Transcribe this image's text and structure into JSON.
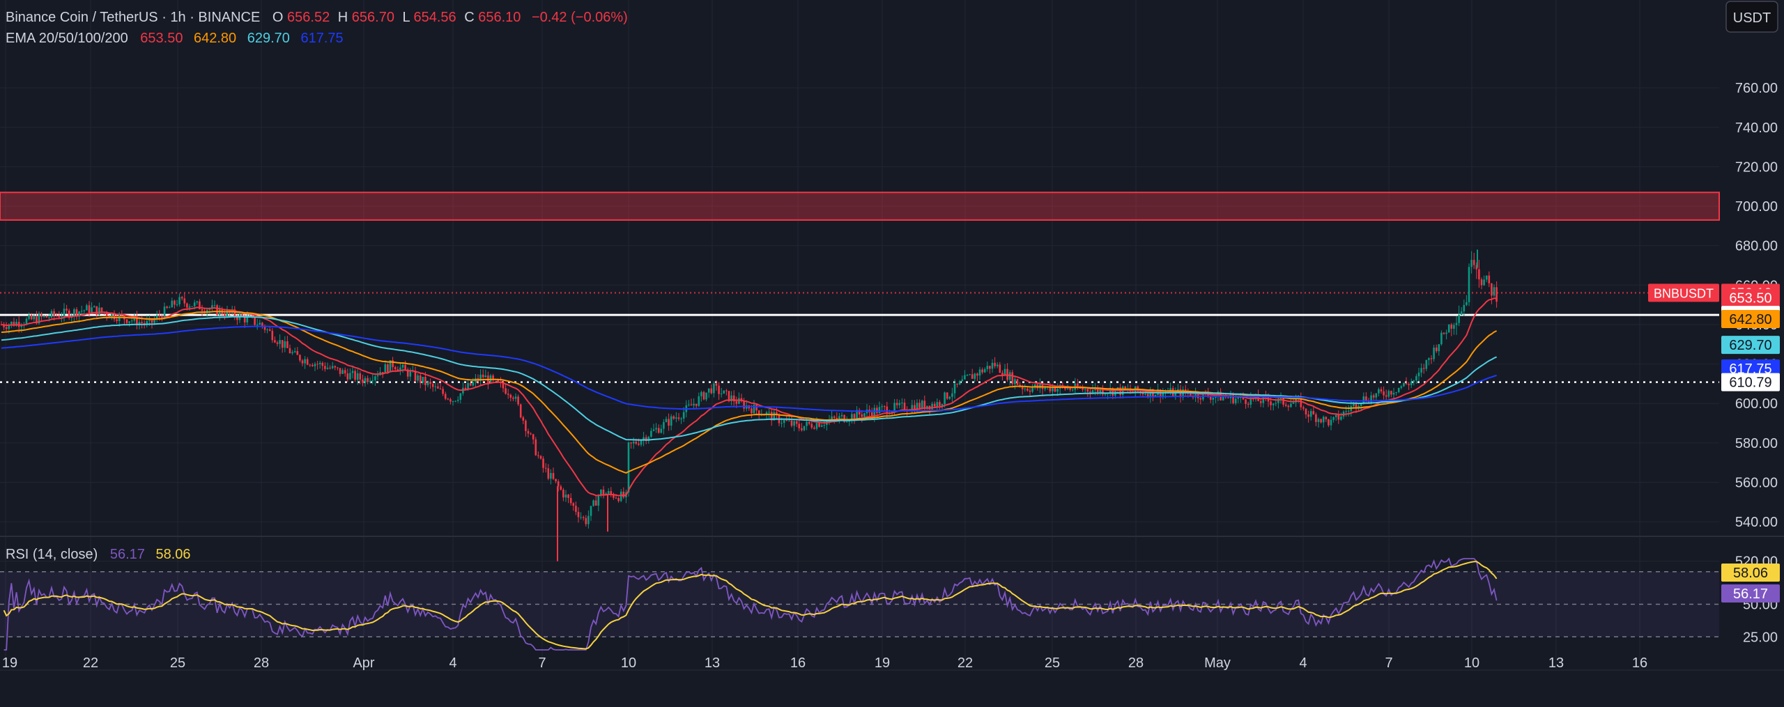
{
  "header": {
    "symbol_title": "Binance Coin / TetherUS · 1h · BINANCE",
    "ohlc": [
      {
        "label": "O",
        "value": "656.52"
      },
      {
        "label": "H",
        "value": "656.70"
      },
      {
        "label": "L",
        "value": "654.56"
      },
      {
        "label": "C",
        "value": "656.10"
      }
    ],
    "change": "−0.42 (−0.06%)",
    "ema_title": "EMA 20/50/100/200",
    "ema_values": [
      {
        "value": "653.50",
        "color": "#f23645"
      },
      {
        "value": "642.80",
        "color": "#ff9800"
      },
      {
        "value": "629.70",
        "color": "#4dd0e1"
      },
      {
        "value": "617.75",
        "color": "#1e3aff"
      }
    ],
    "currency_button": "USDT"
  },
  "rsi_header": {
    "title": "RSI (14, close)",
    "rsi_value": "56.17",
    "ma_value": "58.06"
  },
  "price_axis": {
    "ticks": [
      "760.00",
      "740.00",
      "720.00",
      "700.00",
      "680.00",
      "660.00",
      "640.00",
      "620.00",
      "600.00",
      "580.00",
      "560.00",
      "540.00",
      "520.00"
    ],
    "tags": [
      {
        "text": "656.10",
        "value": 656.1,
        "bg": "#f23645",
        "fg": "#ffffff"
      },
      {
        "text": "653.50",
        "value": 653.5,
        "bg": "#f23645",
        "fg": "#ffffff"
      },
      {
        "text": "644.88",
        "value": 644.88,
        "bg": "#ffffff",
        "fg": "#131722"
      },
      {
        "text": "642.80",
        "value": 642.8,
        "bg": "#ff9800",
        "fg": "#131722"
      },
      {
        "text": "629.70",
        "value": 629.7,
        "bg": "#4dd0e1",
        "fg": "#131722"
      },
      {
        "text": "617.75",
        "value": 617.75,
        "bg": "#1e3aff",
        "fg": "#ffffff"
      },
      {
        "text": "610.79",
        "value": 610.79,
        "bg": "#ffffff",
        "fg": "#131722"
      }
    ],
    "symbol_tag": "BNBUSDT"
  },
  "rsi_axis": {
    "ticks": [
      "75.00",
      "50.00",
      "25.00"
    ],
    "tags": [
      {
        "text": "58.06",
        "value": 58.06,
        "bg": "#f7d33e",
        "fg": "#131722"
      },
      {
        "text": "56.17",
        "value": 56.17,
        "bg": "#7e57c2",
        "fg": "#ffffff"
      }
    ]
  },
  "time_axis": {
    "ticks": [
      "19",
      "22",
      "25",
      "28",
      "Apr",
      "4",
      "7",
      "10",
      "13",
      "16",
      "19",
      "22",
      "25",
      "28",
      "May",
      "4",
      "7",
      "10",
      "13",
      "16"
    ]
  },
  "colors": {
    "background": "#161a25",
    "grid": "#222632",
    "up": "#089981",
    "down": "#f23645",
    "ema20": "#f23645",
    "ema50": "#ff9800",
    "ema100": "#4dd0e1",
    "ema200": "#1e3aff",
    "rsi": "#7e57c2",
    "rsi_ma": "#f7d33e",
    "resistance_zone": "#f23645"
  },
  "chart_data": [
    {
      "type": "candlestick",
      "title": "Binance Coin / TetherUS · 1h · BINANCE",
      "timeframe": "1h",
      "x_ticks": [
        "19",
        "22",
        "25",
        "28",
        "Apr",
        "4",
        "7",
        "10",
        "13",
        "16",
        "19",
        "22",
        "25",
        "28",
        "May",
        "4",
        "7",
        "10",
        "13",
        "16"
      ],
      "ylim": [
        510,
        770
      ],
      "y_scale": "linear",
      "grid": true,
      "last_price": 656.1,
      "price_path": [
        {
          "x": "19",
          "price": 640
        },
        {
          "x": "22",
          "price": 648
        },
        {
          "x": "24",
          "price": 640
        },
        {
          "x": "25",
          "price": 652
        },
        {
          "x": "27",
          "price": 645
        },
        {
          "x": "28",
          "price": 640
        },
        {
          "x": "29",
          "price": 624
        },
        {
          "x": "31",
          "price": 612
        },
        {
          "x": "Apr 2",
          "price": 620
        },
        {
          "x": "4",
          "price": 602
        },
        {
          "x": "5",
          "price": 614
        },
        {
          "x": "6",
          "price": 605
        },
        {
          "x": "7",
          "price": 568
        },
        {
          "x": "7.5",
          "price": 540
        },
        {
          "x": "8",
          "price": 555
        },
        {
          "x": "9",
          "price": 552
        },
        {
          "x": "10",
          "price": 578
        },
        {
          "x": "12",
          "price": 596
        },
        {
          "x": "13",
          "price": 608
        },
        {
          "x": "14",
          "price": 600
        },
        {
          "x": "16",
          "price": 588
        },
        {
          "x": "19",
          "price": 597
        },
        {
          "x": "21",
          "price": 600
        },
        {
          "x": "22",
          "price": 612
        },
        {
          "x": "23",
          "price": 620
        },
        {
          "x": "24",
          "price": 608
        },
        {
          "x": "25",
          "price": 608
        },
        {
          "x": "28",
          "price": 606
        },
        {
          "x": "30",
          "price": 605
        },
        {
          "x": "May 1",
          "price": 602
        },
        {
          "x": "3",
          "price": 600
        },
        {
          "x": "4",
          "price": 596
        },
        {
          "x": "5",
          "price": 590
        },
        {
          "x": "6",
          "price": 602
        },
        {
          "x": "7",
          "price": 606
        },
        {
          "x": "8",
          "price": 612
        },
        {
          "x": "9",
          "price": 636
        },
        {
          "x": "9.8",
          "price": 652
        },
        {
          "x": "10",
          "price": 678
        },
        {
          "x": "10.3",
          "price": 664
        },
        {
          "x": "10.8",
          "price": 656
        }
      ],
      "ema": [
        {
          "name": "EMA 20",
          "last": 653.5,
          "color": "#f23645"
        },
        {
          "name": "EMA 50",
          "last": 642.8,
          "color": "#ff9800"
        },
        {
          "name": "EMA 100",
          "last": 629.7,
          "color": "#4dd0e1"
        },
        {
          "name": "EMA 200",
          "last": 617.75,
          "color": "#1e3aff"
        }
      ],
      "horizontal_lines": [
        {
          "value": 644.88,
          "style": "solid",
          "color": "#ffffff"
        },
        {
          "value": 610.79,
          "style": "dotted",
          "color": "#ffffff"
        },
        {
          "value": 656.1,
          "style": "dotted",
          "color": "#f23645"
        }
      ],
      "zones": [
        {
          "from": 693,
          "to": 707,
          "color": "#f23645"
        }
      ]
    },
    {
      "type": "line",
      "title": "RSI (14, close)",
      "x_ticks": [
        "19",
        "22",
        "25",
        "28",
        "Apr",
        "4",
        "7",
        "10",
        "13",
        "16",
        "19",
        "22",
        "25",
        "28",
        "May",
        "4",
        "7",
        "10",
        "13",
        "16"
      ],
      "ylim": [
        10,
        90
      ],
      "bands": [
        25,
        50,
        75
      ],
      "series": [
        {
          "name": "RSI",
          "last": 56.17,
          "color": "#7e57c2"
        },
        {
          "name": "RSI-based MA",
          "last": 58.06,
          "color": "#f7d33e"
        }
      ]
    }
  ]
}
